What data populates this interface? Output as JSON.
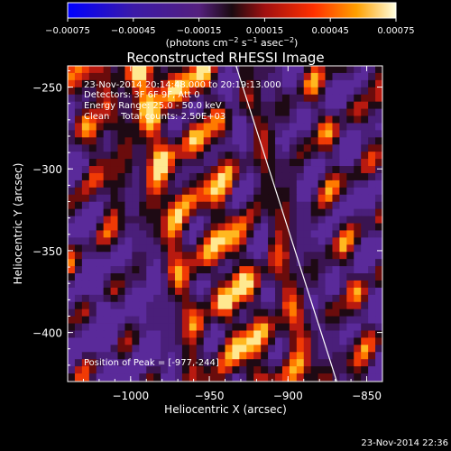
{
  "chart_data": {
    "type": "heatmap",
    "title": "Reconstructed RHESSI Image",
    "xlabel": "Heliocentric X (arcsec)",
    "ylabel": "Heliocentric Y (arcsec)",
    "xlim": [
      -1040,
      -840
    ],
    "ylim": [
      -430,
      -237
    ],
    "x_ticks": [
      -1000,
      -950,
      -900,
      -850
    ],
    "x_tick_labels": [
      "−1000",
      "−950",
      "−900",
      "−850"
    ],
    "y_ticks": [
      -250,
      -300,
      -350,
      -400
    ],
    "y_tick_labels": [
      "−250",
      "−300",
      "−350",
      "−400"
    ],
    "colorbar": {
      "range": [
        -0.00075,
        0.00075
      ],
      "ticks": [
        -0.00075,
        -0.00045,
        -0.00015,
        0.00015,
        0.00045,
        0.00075
      ],
      "tick_labels": [
        "−0.00075",
        "−0.00045",
        "−0.00015",
        "0.00015",
        "0.00045",
        "0.00075"
      ],
      "units_base": "(photons cm",
      "units_exp1": "−2",
      "units_mid1": " s",
      "units_exp2": "−1",
      "units_mid2": " asec",
      "units_exp3": "−2",
      "units_end": ")"
    },
    "annotations": {
      "time_range": "23-Nov-2014 20:14:48.000 to 20:19:13.000",
      "detectors": "Detectors: 3F 6F 9F, Att 0",
      "energy": "Energy Range: 25.0 - 50.0 keV",
      "clean": "Clean    Total counts: 2.50E+03",
      "peak": "Position of Peak = [-977,-244]"
    },
    "limb_line": {
      "x": [
        -933,
        -869
      ],
      "y": [
        -237,
        -430
      ]
    },
    "grid": false
  },
  "footer": {
    "timestamp": "23-Nov-2014 22:36"
  }
}
